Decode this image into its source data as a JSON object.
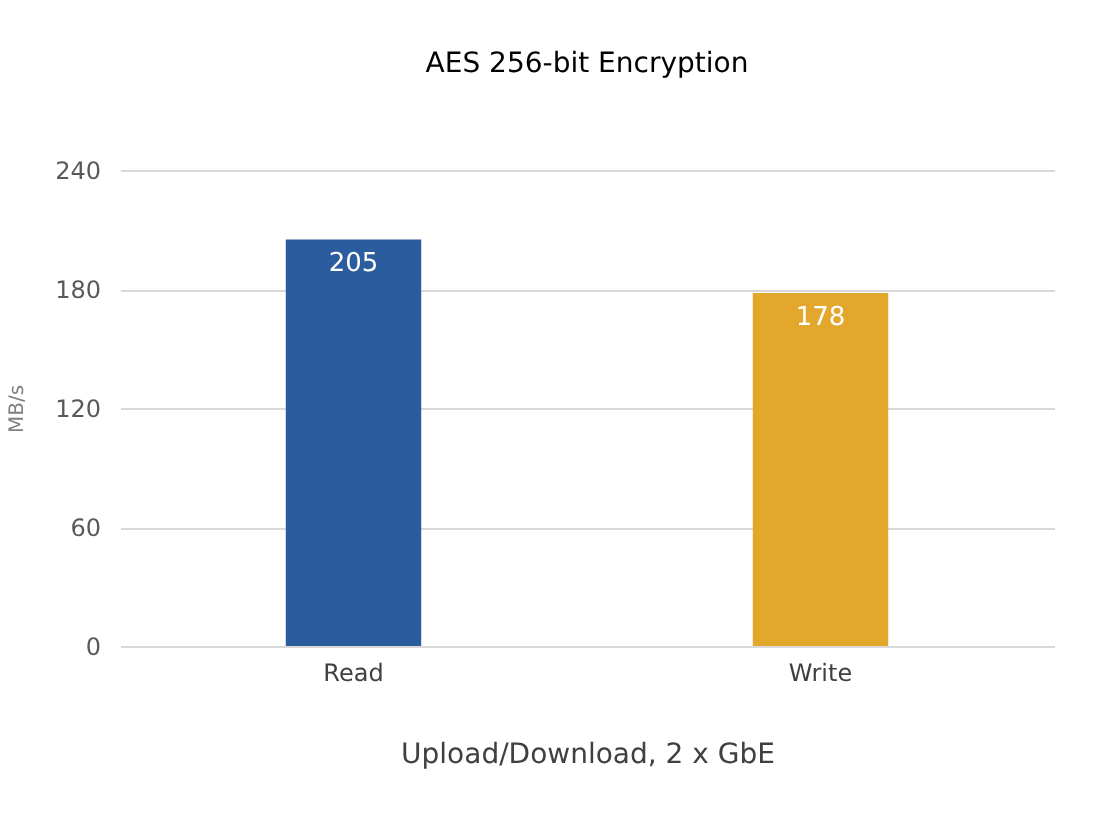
{
  "chart_data": {
    "type": "bar",
    "title": "AES 256-bit Encryption",
    "xlabel": "Upload/Download, 2 x GbE",
    "ylabel": "MB/s",
    "categories": [
      "Read",
      "Write"
    ],
    "values": [
      205,
      178
    ],
    "colors": [
      "#2b5c9e",
      "#e2a72b"
    ],
    "ylim": [
      0,
      240
    ],
    "yticks": [
      0,
      60,
      120,
      180,
      240
    ],
    "grid": "y",
    "data_labels": true
  }
}
